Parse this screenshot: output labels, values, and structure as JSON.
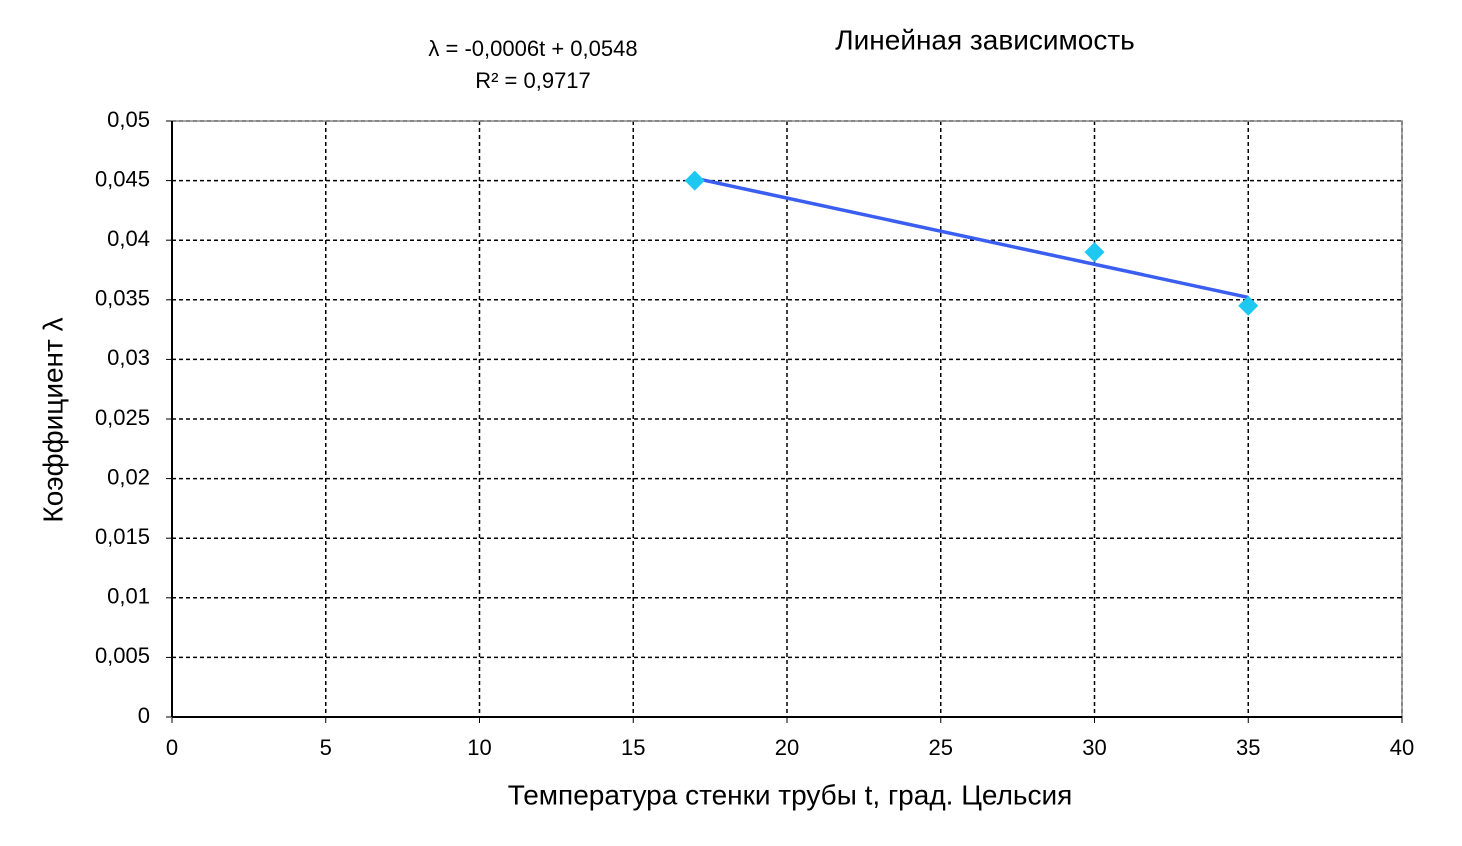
{
  "chart_data": {
    "type": "scatter",
    "title": "Линейная зависимость",
    "annotations": [
      "λ = -0,0006t + 0,0548",
      "R² = 0,9717"
    ],
    "x_label": "Температура  стенки трубы  t, град. Цельсия",
    "y_label": "Коэффициент  λ",
    "points": {
      "x": [
        17,
        30,
        35
      ],
      "values": [
        0.045,
        0.039,
        0.0345
      ],
      "color": "#1ec8f0"
    },
    "trendline": {
      "x": [
        17,
        35
      ],
      "values": [
        0.0452,
        0.0352
      ],
      "color": "#3a5ef0"
    },
    "xlim": [
      0,
      40
    ],
    "xticks": [
      0,
      5,
      10,
      15,
      20,
      25,
      30,
      35,
      40
    ],
    "ylim": [
      0,
      0.05
    ],
    "yticks": [
      0,
      {
        "value": 0.005,
        "label": "0,005"
      },
      {
        "value": 0.01,
        "label": "0,01"
      },
      {
        "value": 0.015,
        "label": "0,015"
      },
      {
        "value": 0.02,
        "label": "0,02"
      },
      {
        "value": 0.025,
        "label": "0,025"
      },
      {
        "value": 0.03,
        "label": "0,03"
      },
      {
        "value": 0.035,
        "label": "0,035"
      },
      {
        "value": 0.04,
        "label": "0,04"
      },
      {
        "value": 0.045,
        "label": "0,045"
      },
      {
        "value": 0.05,
        "label": "0,05"
      }
    ],
    "grid": true
  }
}
